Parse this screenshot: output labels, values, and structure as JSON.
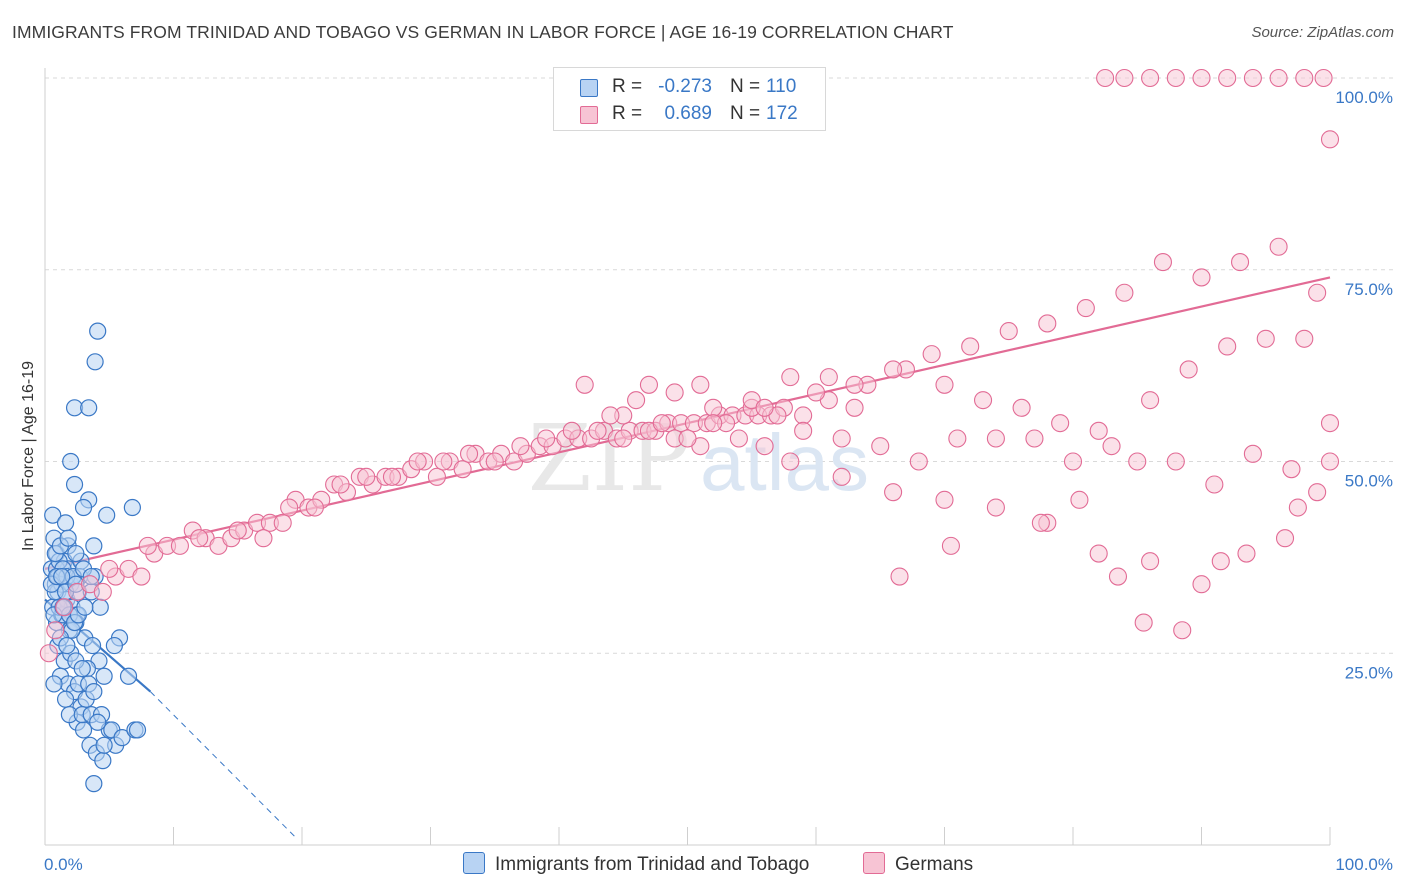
{
  "title": "IMMIGRANTS FROM TRINIDAD AND TOBAGO VS GERMAN IN LABOR FORCE | AGE 16-19 CORRELATION CHART",
  "source": "Source: ZipAtlas.com",
  "watermark": "ZIPatlas",
  "colors": {
    "blue": "#3a78c6",
    "blue_fill": "#b8d3f3",
    "pink": "#e26b95",
    "pink_fill": "#f7c4d4",
    "grid": "#d9d9d9",
    "tick_text": "#3a78c6"
  },
  "legend": {
    "rows": [
      {
        "r_label": "R =",
        "r_value": "-0.273",
        "n_label": "N =",
        "n_value": "110"
      },
      {
        "r_label": "R =",
        "r_value": "0.689",
        "n_label": "N =",
        "n_value": "172"
      }
    ]
  },
  "bottom_legend": [
    "Immigrants from Trinidad and Tobago",
    "Germans"
  ],
  "chart_data": {
    "type": "scatter",
    "title": "IMMIGRANTS FROM TRINIDAD AND TOBAGO VS GERMAN IN LABOR FORCE | AGE 16-19 CORRELATION CHART",
    "ylabel": "In Labor Force | Age 16-19",
    "xlabel": "",
    "xlim": [
      0,
      100
    ],
    "ylim": [
      0,
      100
    ],
    "x_tick_labels": [
      "0.0%",
      "100.0%"
    ],
    "y_ticks": [
      25,
      50,
      75,
      100
    ],
    "y_tick_labels": [
      "25.0%",
      "50.0%",
      "75.0%",
      "100.0%"
    ],
    "grid": "horizontal dashed",
    "legend_position": "top-center",
    "series": [
      {
        "name": "Immigrants from Trinidad and Tobago",
        "color": "#3a78c6",
        "R": -0.273,
        "N": 110,
        "trend": {
          "x": [
            0,
            8.2
          ],
          "y": [
            32,
            20
          ],
          "extended_x": [
            8.2,
            19.5
          ],
          "extended_y": [
            20,
            1
          ]
        },
        "points": [
          [
            0.6,
            43
          ],
          [
            0.7,
            40
          ],
          [
            0.9,
            38
          ],
          [
            1.2,
            35
          ],
          [
            0.5,
            36
          ],
          [
            0.8,
            34
          ],
          [
            1.0,
            33
          ],
          [
            1.5,
            37
          ],
          [
            1.8,
            36
          ],
          [
            2.0,
            34
          ],
          [
            2.2,
            35
          ],
          [
            0.6,
            31
          ],
          [
            0.9,
            29
          ],
          [
            1.3,
            30
          ],
          [
            1.7,
            32
          ],
          [
            2.1,
            31
          ],
          [
            2.5,
            30
          ],
          [
            1.0,
            26
          ],
          [
            1.5,
            24
          ],
          [
            2.0,
            25
          ],
          [
            1.2,
            22
          ],
          [
            1.8,
            21
          ],
          [
            2.3,
            20
          ],
          [
            2.8,
            18
          ],
          [
            3.2,
            19
          ],
          [
            2.5,
            16
          ],
          [
            3.0,
            15
          ],
          [
            3.5,
            13
          ],
          [
            4.0,
            12
          ],
          [
            3.8,
            8
          ],
          [
            4.5,
            11
          ],
          [
            5.0,
            15
          ],
          [
            5.2,
            15
          ],
          [
            5.5,
            13
          ],
          [
            6.0,
            14
          ],
          [
            7.0,
            15
          ],
          [
            7.2,
            15
          ],
          [
            6.5,
            22
          ],
          [
            5.8,
            27
          ],
          [
            3.9,
            63
          ],
          [
            4.1,
            67
          ],
          [
            2.3,
            57
          ],
          [
            3.4,
            57
          ],
          [
            2.0,
            50
          ],
          [
            2.3,
            47
          ],
          [
            3.4,
            45
          ],
          [
            3.0,
            44
          ],
          [
            4.8,
            43
          ],
          [
            6.8,
            44
          ],
          [
            1.6,
            42
          ],
          [
            1.8,
            39
          ],
          [
            2.8,
            37
          ],
          [
            3.8,
            39
          ],
          [
            0.9,
            36
          ],
          [
            1.3,
            34
          ],
          [
            2.6,
            33
          ],
          [
            3.6,
            33
          ],
          [
            4.3,
            31
          ],
          [
            1.4,
            30
          ],
          [
            1.9,
            28
          ],
          [
            2.4,
            29
          ],
          [
            3.1,
            27
          ],
          [
            3.7,
            26
          ],
          [
            4.2,
            24
          ],
          [
            0.7,
            21
          ],
          [
            1.6,
            19
          ],
          [
            2.6,
            21
          ],
          [
            3.3,
            23
          ],
          [
            4.6,
            22
          ],
          [
            5.4,
            26
          ],
          [
            1.9,
            17
          ],
          [
            2.9,
            17
          ],
          [
            3.6,
            17
          ],
          [
            4.4,
            17
          ],
          [
            0.8,
            33
          ],
          [
            1.1,
            37
          ],
          [
            2.7,
            35
          ],
          [
            3.9,
            35
          ],
          [
            2.1,
            28
          ],
          [
            1.0,
            35
          ],
          [
            1.4,
            36
          ],
          [
            1.7,
            35
          ],
          [
            2.2,
            35
          ],
          [
            0.5,
            34
          ],
          [
            0.9,
            35
          ],
          [
            1.3,
            35
          ],
          [
            1.6,
            33
          ],
          [
            2.4,
            34
          ],
          [
            1.1,
            31
          ],
          [
            1.5,
            31
          ],
          [
            1.9,
            30
          ],
          [
            2.3,
            29
          ],
          [
            0.7,
            30
          ],
          [
            1.2,
            27
          ],
          [
            1.7,
            26
          ],
          [
            2.4,
            24
          ],
          [
            2.9,
            23
          ],
          [
            3.4,
            21
          ],
          [
            3.8,
            20
          ],
          [
            4.1,
            16
          ],
          [
            4.6,
            13
          ],
          [
            2.6,
            30
          ],
          [
            3.1,
            31
          ],
          [
            1.4,
            31
          ],
          [
            0.8,
            38
          ],
          [
            1.2,
            39
          ],
          [
            1.8,
            40
          ],
          [
            2.4,
            38
          ],
          [
            3.0,
            36
          ],
          [
            3.6,
            35
          ]
        ]
      },
      {
        "name": "Germans",
        "color": "#e26b95",
        "R": 0.689,
        "N": 172,
        "trend": {
          "x": [
            0,
            100
          ],
          "y": [
            36,
            74
          ]
        },
        "points": [
          [
            0.3,
            25
          ],
          [
            0.8,
            28
          ],
          [
            1.5,
            31
          ],
          [
            2.5,
            33
          ],
          [
            3.5,
            34
          ],
          [
            4.5,
            33
          ],
          [
            5.5,
            35
          ],
          [
            6.5,
            36
          ],
          [
            7.5,
            35
          ],
          [
            8.5,
            38
          ],
          [
            9.5,
            39
          ],
          [
            10.5,
            39
          ],
          [
            11.5,
            41
          ],
          [
            12.5,
            40
          ],
          [
            13.5,
            39
          ],
          [
            14.5,
            40
          ],
          [
            15.5,
            41
          ],
          [
            16.5,
            42
          ],
          [
            17.5,
            42
          ],
          [
            18.5,
            42
          ],
          [
            19.5,
            45
          ],
          [
            20.5,
            44
          ],
          [
            21.5,
            45
          ],
          [
            22.5,
            47
          ],
          [
            23.5,
            46
          ],
          [
            24.5,
            48
          ],
          [
            25.5,
            47
          ],
          [
            26.5,
            48
          ],
          [
            27.5,
            48
          ],
          [
            28.5,
            49
          ],
          [
            29.5,
            50
          ],
          [
            30.5,
            48
          ],
          [
            31.5,
            50
          ],
          [
            32.5,
            49
          ],
          [
            33.5,
            51
          ],
          [
            34.5,
            50
          ],
          [
            35.5,
            51
          ],
          [
            36.5,
            50
          ],
          [
            37.5,
            51
          ],
          [
            38.5,
            52
          ],
          [
            39.5,
            52
          ],
          [
            40.5,
            53
          ],
          [
            41.5,
            53
          ],
          [
            42.5,
            53
          ],
          [
            43.5,
            54
          ],
          [
            44.5,
            53
          ],
          [
            45.5,
            54
          ],
          [
            46.5,
            54
          ],
          [
            47.5,
            54
          ],
          [
            48.5,
            55
          ],
          [
            49.5,
            55
          ],
          [
            50.5,
            55
          ],
          [
            51.5,
            55
          ],
          [
            52.5,
            56
          ],
          [
            53.5,
            56
          ],
          [
            54.5,
            56
          ],
          [
            55.5,
            56
          ],
          [
            56.5,
            56
          ],
          [
            57.5,
            57
          ],
          [
            5.0,
            36
          ],
          [
            8.0,
            39
          ],
          [
            12.0,
            40
          ],
          [
            15.0,
            41
          ],
          [
            17.0,
            40
          ],
          [
            19.0,
            44
          ],
          [
            21.0,
            44
          ],
          [
            23.0,
            47
          ],
          [
            25.0,
            48
          ],
          [
            27.0,
            48
          ],
          [
            29.0,
            50
          ],
          [
            31.0,
            50
          ],
          [
            33.0,
            51
          ],
          [
            35.0,
            50
          ],
          [
            37.0,
            52
          ],
          [
            39.0,
            53
          ],
          [
            41.0,
            54
          ],
          [
            43.0,
            54
          ],
          [
            45.0,
            56
          ],
          [
            47.0,
            54
          ],
          [
            49.0,
            53
          ],
          [
            51.0,
            52
          ],
          [
            53.0,
            55
          ],
          [
            55.0,
            57
          ],
          [
            57.0,
            56
          ],
          [
            59.0,
            56
          ],
          [
            61.0,
            58
          ],
          [
            63.0,
            57
          ],
          [
            46.0,
            58
          ],
          [
            49.0,
            59
          ],
          [
            52.0,
            57
          ],
          [
            55.0,
            58
          ],
          [
            58.0,
            61
          ],
          [
            61.0,
            61
          ],
          [
            64.0,
            60
          ],
          [
            67.0,
            62
          ],
          [
            70.0,
            60
          ],
          [
            73.0,
            58
          ],
          [
            76.0,
            57
          ],
          [
            79.0,
            55
          ],
          [
            82.0,
            54
          ],
          [
            85.0,
            50
          ],
          [
            88.0,
            50
          ],
          [
            91.0,
            47
          ],
          [
            94.0,
            51
          ],
          [
            97.0,
            49
          ],
          [
            100.0,
            55
          ],
          [
            54.0,
            53
          ],
          [
            56.0,
            52
          ],
          [
            59.0,
            54
          ],
          [
            62.0,
            53
          ],
          [
            65.0,
            52
          ],
          [
            68.0,
            50
          ],
          [
            71.0,
            53
          ],
          [
            74.0,
            53
          ],
          [
            77.0,
            53
          ],
          [
            80.0,
            50
          ],
          [
            83.0,
            52
          ],
          [
            86.0,
            58
          ],
          [
            89.0,
            62
          ],
          [
            92.0,
            65
          ],
          [
            95.0,
            66
          ],
          [
            98.0,
            66
          ],
          [
            99.0,
            72
          ],
          [
            60.0,
            59
          ],
          [
            63.0,
            60
          ],
          [
            66.0,
            62
          ],
          [
            69.0,
            64
          ],
          [
            72.0,
            65
          ],
          [
            75.0,
            67
          ],
          [
            78.0,
            68
          ],
          [
            81.0,
            70
          ],
          [
            84.0,
            72
          ],
          [
            87.0,
            76
          ],
          [
            90.0,
            74
          ],
          [
            93.0,
            76
          ],
          [
            96.0,
            78
          ],
          [
            100.0,
            92
          ],
          [
            82.5,
            100
          ],
          [
            84.0,
            100
          ],
          [
            86.0,
            100
          ],
          [
            88.0,
            100
          ],
          [
            90.0,
            100
          ],
          [
            92.0,
            100
          ],
          [
            94.0,
            100
          ],
          [
            96.0,
            100
          ],
          [
            98.0,
            100
          ],
          [
            99.5,
            100
          ],
          [
            42.0,
            60
          ],
          [
            47.0,
            60
          ],
          [
            51.0,
            60
          ],
          [
            44.0,
            56
          ],
          [
            48.0,
            55
          ],
          [
            52.0,
            55
          ],
          [
            56.0,
            57
          ],
          [
            45.0,
            53
          ],
          [
            50.0,
            53
          ],
          [
            58.0,
            50
          ],
          [
            62.0,
            48
          ],
          [
            66.0,
            46
          ],
          [
            70.0,
            45
          ],
          [
            74.0,
            44
          ],
          [
            78.0,
            42
          ],
          [
            82.0,
            38
          ],
          [
            86.0,
            37
          ],
          [
            90.0,
            34
          ],
          [
            66.5,
            35
          ],
          [
            70.5,
            39
          ],
          [
            77.5,
            42
          ],
          [
            80.5,
            45
          ],
          [
            83.5,
            35
          ],
          [
            85.5,
            29
          ],
          [
            88.5,
            28
          ],
          [
            91.5,
            37
          ],
          [
            93.5,
            38
          ],
          [
            96.5,
            40
          ],
          [
            97.5,
            44
          ],
          [
            99.0,
            46
          ],
          [
            100.0,
            50
          ]
        ]
      }
    ]
  }
}
